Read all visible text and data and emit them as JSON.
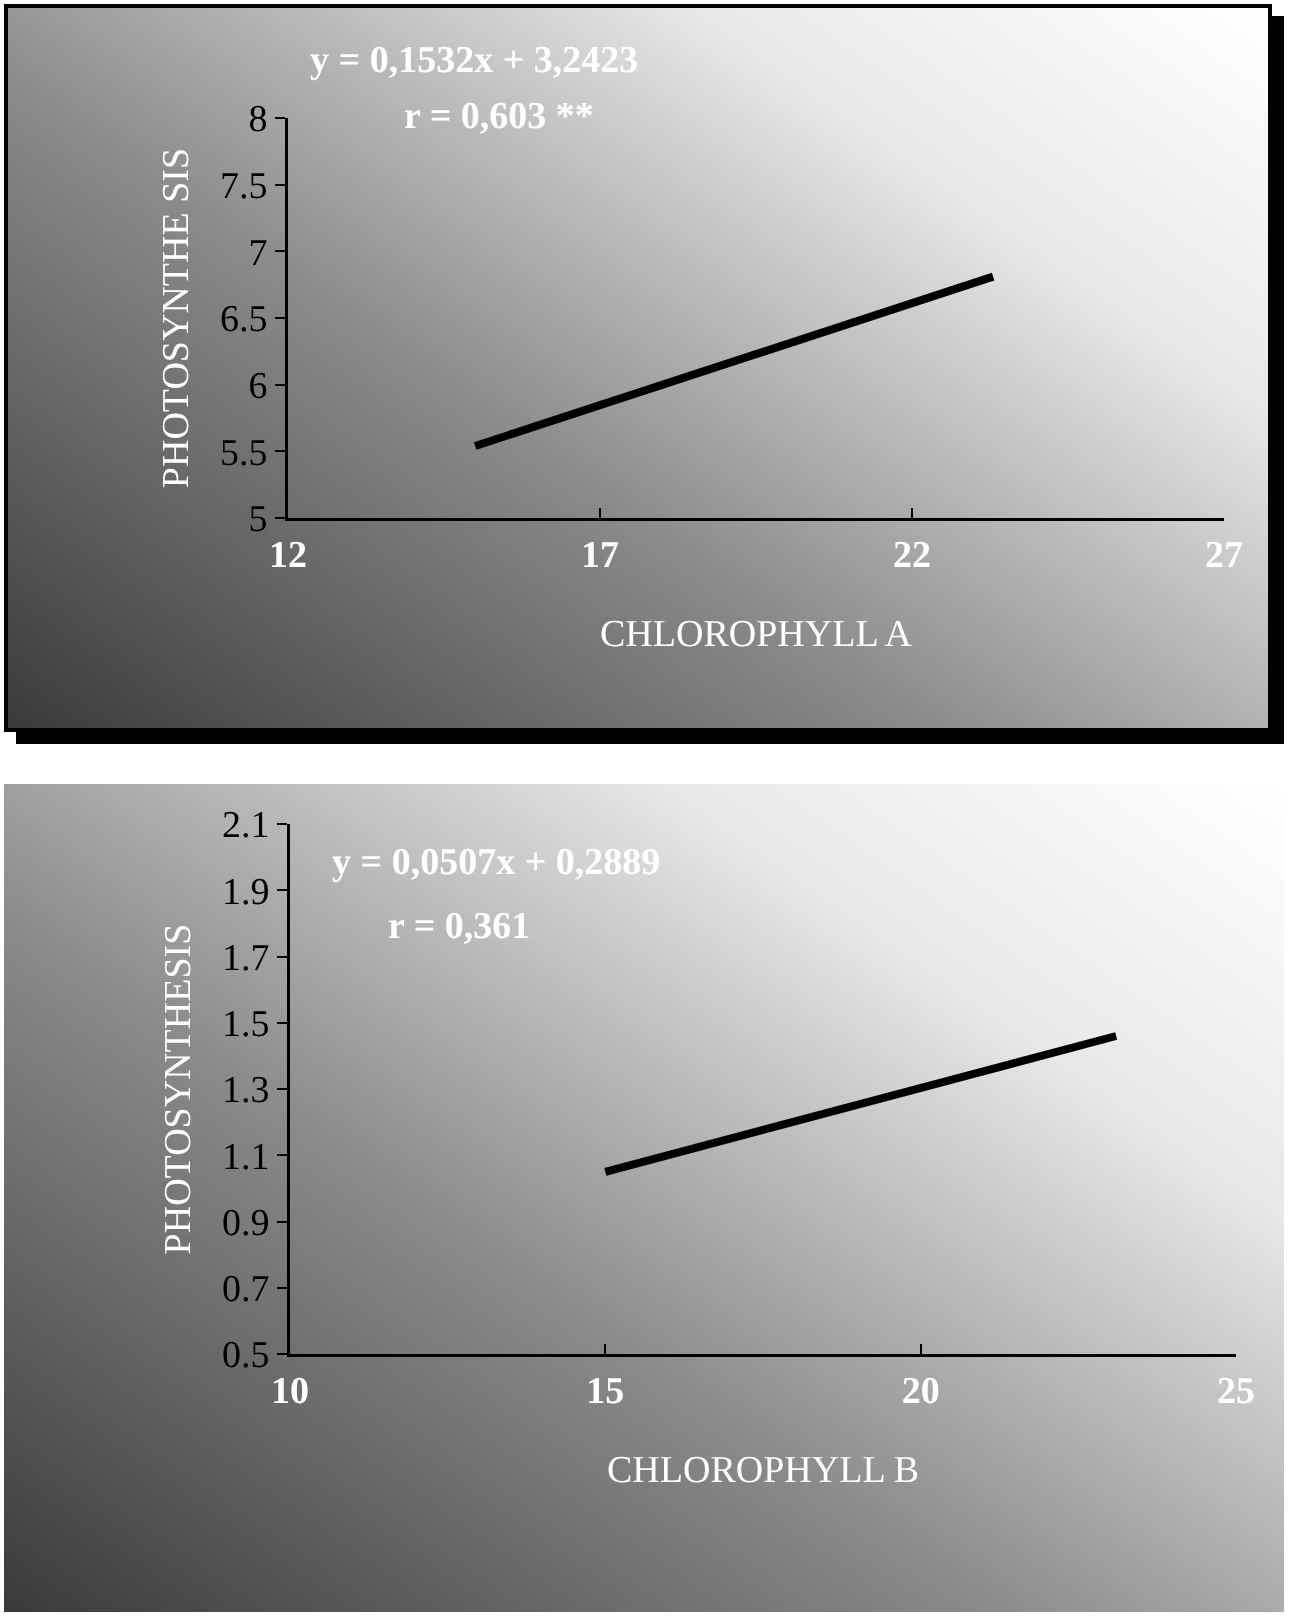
{
  "chart_data": [
    {
      "type": "line",
      "xlabel": "CHLOROPHYLL A",
      "ylabel": "PHOTOSYNTHE SIS",
      "annotations": [
        "y = 0,1532x + 3,2423",
        "r = 0,603 **"
      ],
      "series": [
        {
          "color": "#000000",
          "x": [
            15,
            23.3
          ],
          "values": [
            5.54,
            6.81
          ]
        }
      ],
      "xlim": [
        12,
        27
      ],
      "xticks": [
        12,
        17,
        22,
        27
      ],
      "ylim": [
        5,
        8
      ],
      "yticks": [
        5,
        5.5,
        6,
        6.5,
        7,
        7.5,
        8
      ],
      "grid": false,
      "line_style": "solid"
    },
    {
      "type": "line",
      "xlabel": "CHLOROPHYLL B",
      "ylabel": "PHOTOSYNTHESIS",
      "annotations": [
        "y = 0,0507x + 0,2889",
        "r = 0,361"
      ],
      "series": [
        {
          "color": "#000000",
          "x": [
            15,
            23.1
          ],
          "values": [
            1.05,
            1.46
          ]
        }
      ],
      "xlim": [
        10,
        25
      ],
      "xticks": [
        10,
        15,
        20,
        25
      ],
      "ylim": [
        0.5,
        2.1
      ],
      "yticks": [
        0.5,
        0.7,
        0.9,
        1.1,
        1.3,
        1.5,
        1.7,
        1.9,
        2.1
      ],
      "grid": false,
      "line_style": "solid"
    }
  ]
}
